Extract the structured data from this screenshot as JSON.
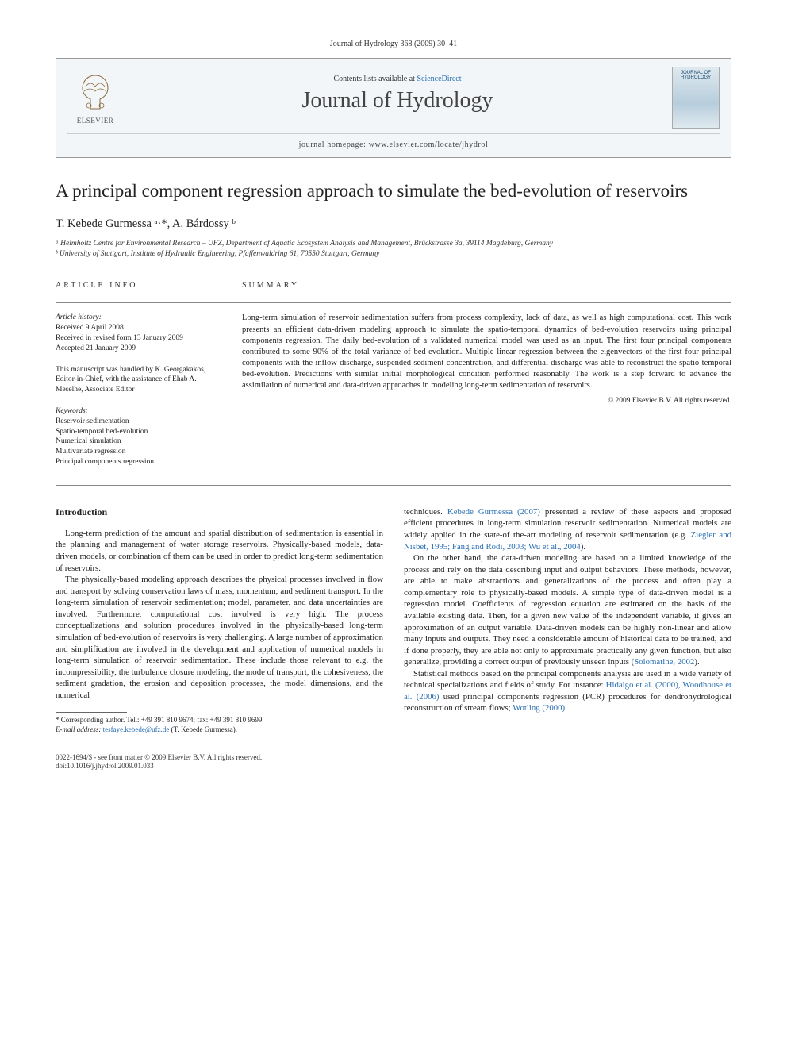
{
  "top_citation": "Journal of Hydrology 368 (2009) 30–41",
  "header": {
    "contents_prefix": "Contents lists available at ",
    "contents_link": "ScienceDirect",
    "journal": "Journal of Hydrology",
    "homepage_label": "journal homepage: www.elsevier.com/locate/jhydrol",
    "publisher": "ELSEVIER",
    "cover_text": "JOURNAL OF HYDROLOGY"
  },
  "title": "A principal component regression approach to simulate the bed-evolution of reservoirs",
  "authors_html": "T. Kebede Gurmessa ᵃ·*, A. Bárdossy ᵇ",
  "affiliations": [
    "ᵃ Helmholtz Centre for Environmental Research – UFZ, Department of Aquatic Ecosystem Analysis and Management, Brückstrasse 3a, 39114 Magdeburg, Germany",
    "ᵇ University of Stuttgart, Institute of Hydraulic Engineering, Pfaffenwaldring 61, 70550 Stuttgart, Germany"
  ],
  "info": {
    "article_info_label": "ARTICLE INFO",
    "summary_label": "SUMMARY",
    "history_head": "Article history:",
    "history_lines": [
      "Received 9 April 2008",
      "Received in revised form 13 January 2009",
      "Accepted 21 January 2009"
    ],
    "editor_note": "This manuscript was handled by K. Georgakakos, Editor-in-Chief, with the assistance of Ehab A. Meselhe, Associate Editor",
    "keywords_head": "Keywords:",
    "keywords": [
      "Reservoir sedimentation",
      "Spatio-temporal bed-evolution",
      "Numerical simulation",
      "Multivariate regression",
      "Principal components regression"
    ]
  },
  "summary": "Long-term simulation of reservoir sedimentation suffers from process complexity, lack of data, as well as high computational cost. This work presents an efficient data-driven modeling approach to simulate the spatio-temporal dynamics of bed-evolution reservoirs using principal components regression. The daily bed-evolution of a validated numerical model was used as an input. The first four principal components contributed to some 90% of the total variance of bed-evolution. Multiple linear regression between the eigenvectors of the first four principal components with the inflow discharge, suspended sediment concentration, and differential discharge was able to reconstruct the spatio-temporal bed-evolution. Predictions with similar initial morphological condition performed reasonably. The work is a step forward to advance the assimilation of numerical and data-driven approaches in modeling long-term sedimentation of reservoirs.",
  "copyright": "© 2009 Elsevier B.V. All rights reserved.",
  "intro_heading": "Introduction",
  "col_left_paras": [
    "Long-term prediction of the amount and spatial distribution of sedimentation is essential in the planning and management of water storage reservoirs. Physically-based models, data-driven models, or combination of them can be used in order to predict long-term sedimentation of reservoirs.",
    "The physically-based modeling approach describes the physical processes involved in flow and transport by solving conservation laws of mass, momentum, and sediment transport. In the long-term simulation of reservoir sedimentation; model, parameter, and data uncertainties are involved. Furthermore, computational cost involved is very high. The process conceptualizations and solution procedures involved in the physically-based long-term simulation of bed-evolution of reservoirs is very challenging. A large number of approximation and simplification are involved in the development and application of numerical models in long-term simulation of reservoir sedimentation. These include those relevant to e.g. the incompressibility, the turbulence closure modeling, the mode of transport, the cohesiveness, the sediment gradation, the erosion and deposition processes, the model dimensions, and the numerical"
  ],
  "col_right_paras": [
    "techniques. <span class='cite-link'>Kebede Gurmessa (2007)</span> presented a review of these aspects and proposed efficient procedures in long-term simulation reservoir sedimentation. Numerical models are widely applied in the state-of the-art modeling of reservoir sedimentation (e.g. <span class='cite-link'>Ziegler and Nisbet, 1995; Fang and Rodi, 2003; Wu et al., 2004</span>).",
    "On the other hand, the data-driven modeling are based on a limited knowledge of the process and rely on the data describing input and output behaviors. These methods, however, are able to make abstractions and generalizations of the process and often play a complementary role to physically-based models. A simple type of data-driven model is a regression model. Coefficients of regression equation are estimated on the basis of the available existing data. Then, for a given new value of the independent variable, it gives an approximation of an output variable. Data-driven models can be highly non-linear and allow many inputs and outputs. They need a considerable amount of historical data to be trained, and if done properly, they are able not only to approximate practically any given function, but also generalize, providing a correct output of previously unseen inputs (<span class='cite-link'>Solomatine, 2002</span>).",
    "Statistical methods based on the principal components analysis are used in a wide variety of technical specializations and fields of study. For instance: <span class='cite-link'>Hidalgo et al. (2000), Woodhouse et al. (2006)</span> used principal components regression (PCR) procedures for dendrohydrological reconstruction of stream flows; <span class='cite-link'>Wotling (2000)</span>"
  ],
  "footnote": {
    "corr": "* Corresponding author. Tel.: +49 391 810 9674; fax: +49 391 810 9699.",
    "email_label": "E-mail address:",
    "email": "tesfaye.kebede@ufz.de",
    "email_whom": "(T. Kebede Gurmessa)."
  },
  "bottom": {
    "issn": "0022-1694/$ - see front matter © 2009 Elsevier B.V. All rights reserved.",
    "doi": "doi:10.1016/j.jhydrol.2009.01.033"
  }
}
